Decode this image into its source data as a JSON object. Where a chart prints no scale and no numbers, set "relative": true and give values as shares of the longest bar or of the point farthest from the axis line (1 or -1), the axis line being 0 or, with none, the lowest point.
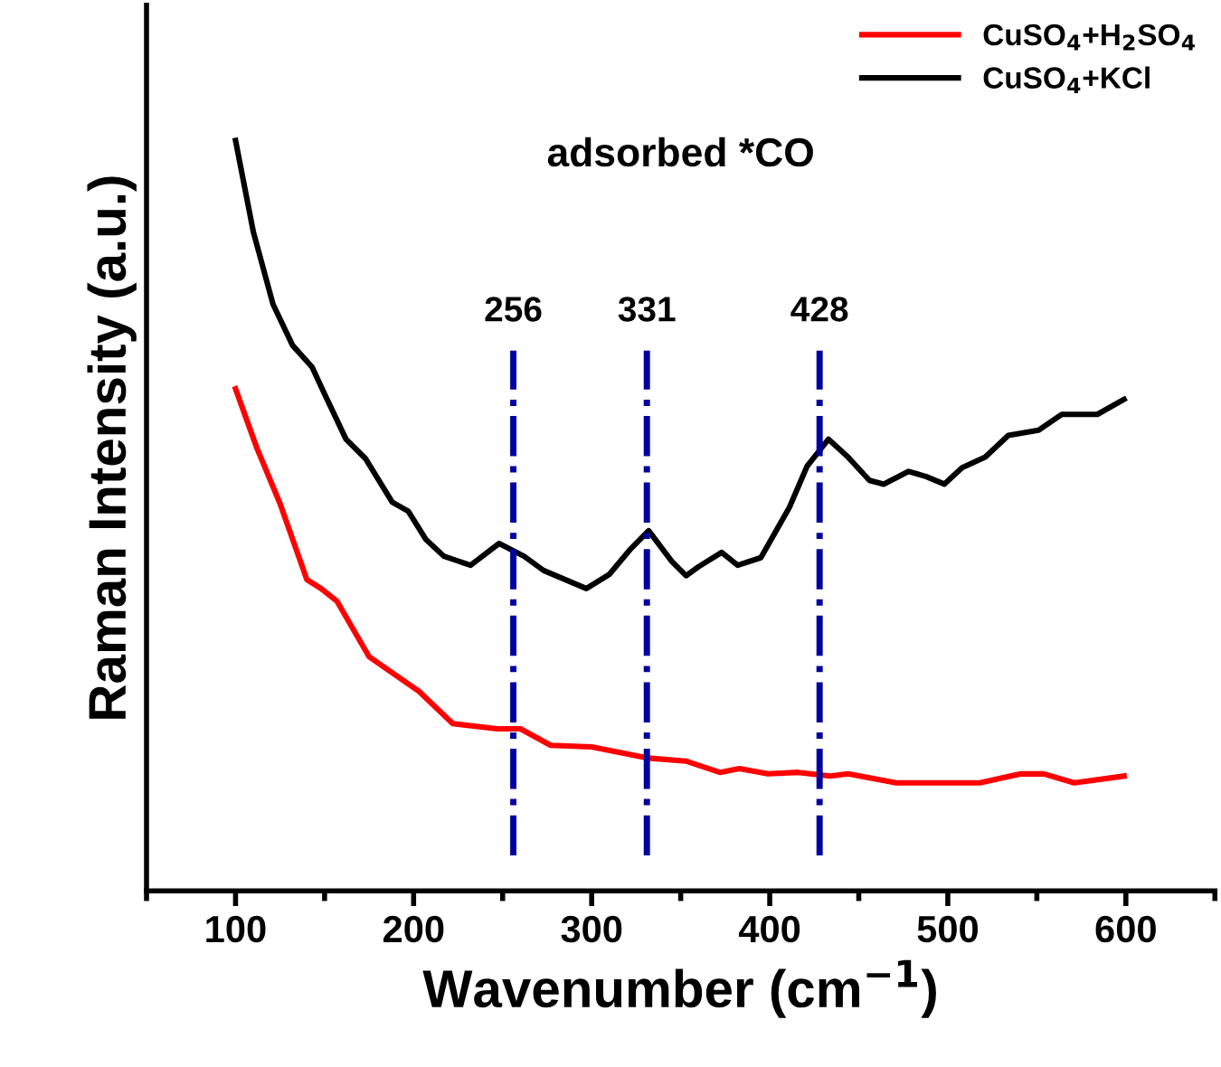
{
  "chart_data": {
    "type": "line",
    "relative": true,
    "xlabel": "Wavenumber (cm$^{−1}$)",
    "ylabel": "Raman Intensity (a.u.)",
    "xlim": [
      50,
      650
    ],
    "xticks": [
      100,
      200,
      300,
      400,
      500,
      600
    ],
    "legend": "top right",
    "grid": false,
    "marker": "none",
    "line_style": "solid",
    "annotations": [
      "adsorbed *CO"
    ],
    "ref_lines": [
      {
        "axis": "x",
        "value": 256,
        "label": "256",
        "color": "#0000a0",
        "line_style": "dashdot"
      },
      {
        "axis": "x",
        "value": 331,
        "label": "331",
        "color": "#0000a0",
        "line_style": "dashdot"
      },
      {
        "axis": "x",
        "value": 428,
        "label": "428",
        "color": "#0000a0",
        "line_style": "dashdot"
      }
    ],
    "series": [
      {
        "name": "CuSO$_{4}$+H$_{2}$SO$_{4}$",
        "color": "#ff0000",
        "x": [
          100,
          112,
          125,
          140,
          148,
          157,
          175,
          203,
          222,
          247,
          260,
          277,
          300,
          332,
          353,
          372,
          383,
          399,
          416,
          434,
          444,
          471,
          501,
          518,
          541,
          554,
          571,
          599
        ],
        "values": [
          0.669,
          0.59,
          0.516,
          0.415,
          0.403,
          0.386,
          0.312,
          0.266,
          0.223,
          0.216,
          0.216,
          0.194,
          0.192,
          0.177,
          0.173,
          0.158,
          0.163,
          0.156,
          0.158,
          0.153,
          0.156,
          0.144,
          0.144,
          0.144,
          0.156,
          0.156,
          0.144,
          0.153
        ]
      },
      {
        "name": "CuSO$_{4}$+KCl",
        "color": "#000000",
        "x": [
          100,
          110,
          121,
          132,
          143,
          150,
          162,
          173,
          188,
          197,
          207,
          217,
          232,
          248,
          262,
          273,
          297,
          310,
          322,
          332,
          345,
          353,
          360,
          373,
          382,
          395,
          411,
          421,
          433,
          444,
          456,
          464,
          478,
          488,
          498,
          508,
          521,
          534,
          551,
          564,
          584,
          599
        ],
        "values": [
          1.0,
          0.878,
          0.782,
          0.727,
          0.698,
          0.662,
          0.602,
          0.576,
          0.518,
          0.506,
          0.468,
          0.446,
          0.434,
          0.463,
          0.446,
          0.427,
          0.403,
          0.422,
          0.456,
          0.48,
          0.439,
          0.42,
          0.432,
          0.451,
          0.434,
          0.444,
          0.511,
          0.566,
          0.602,
          0.578,
          0.547,
          0.542,
          0.559,
          0.552,
          0.542,
          0.564,
          0.578,
          0.607,
          0.614,
          0.635,
          0.635,
          0.655
        ]
      }
    ]
  }
}
